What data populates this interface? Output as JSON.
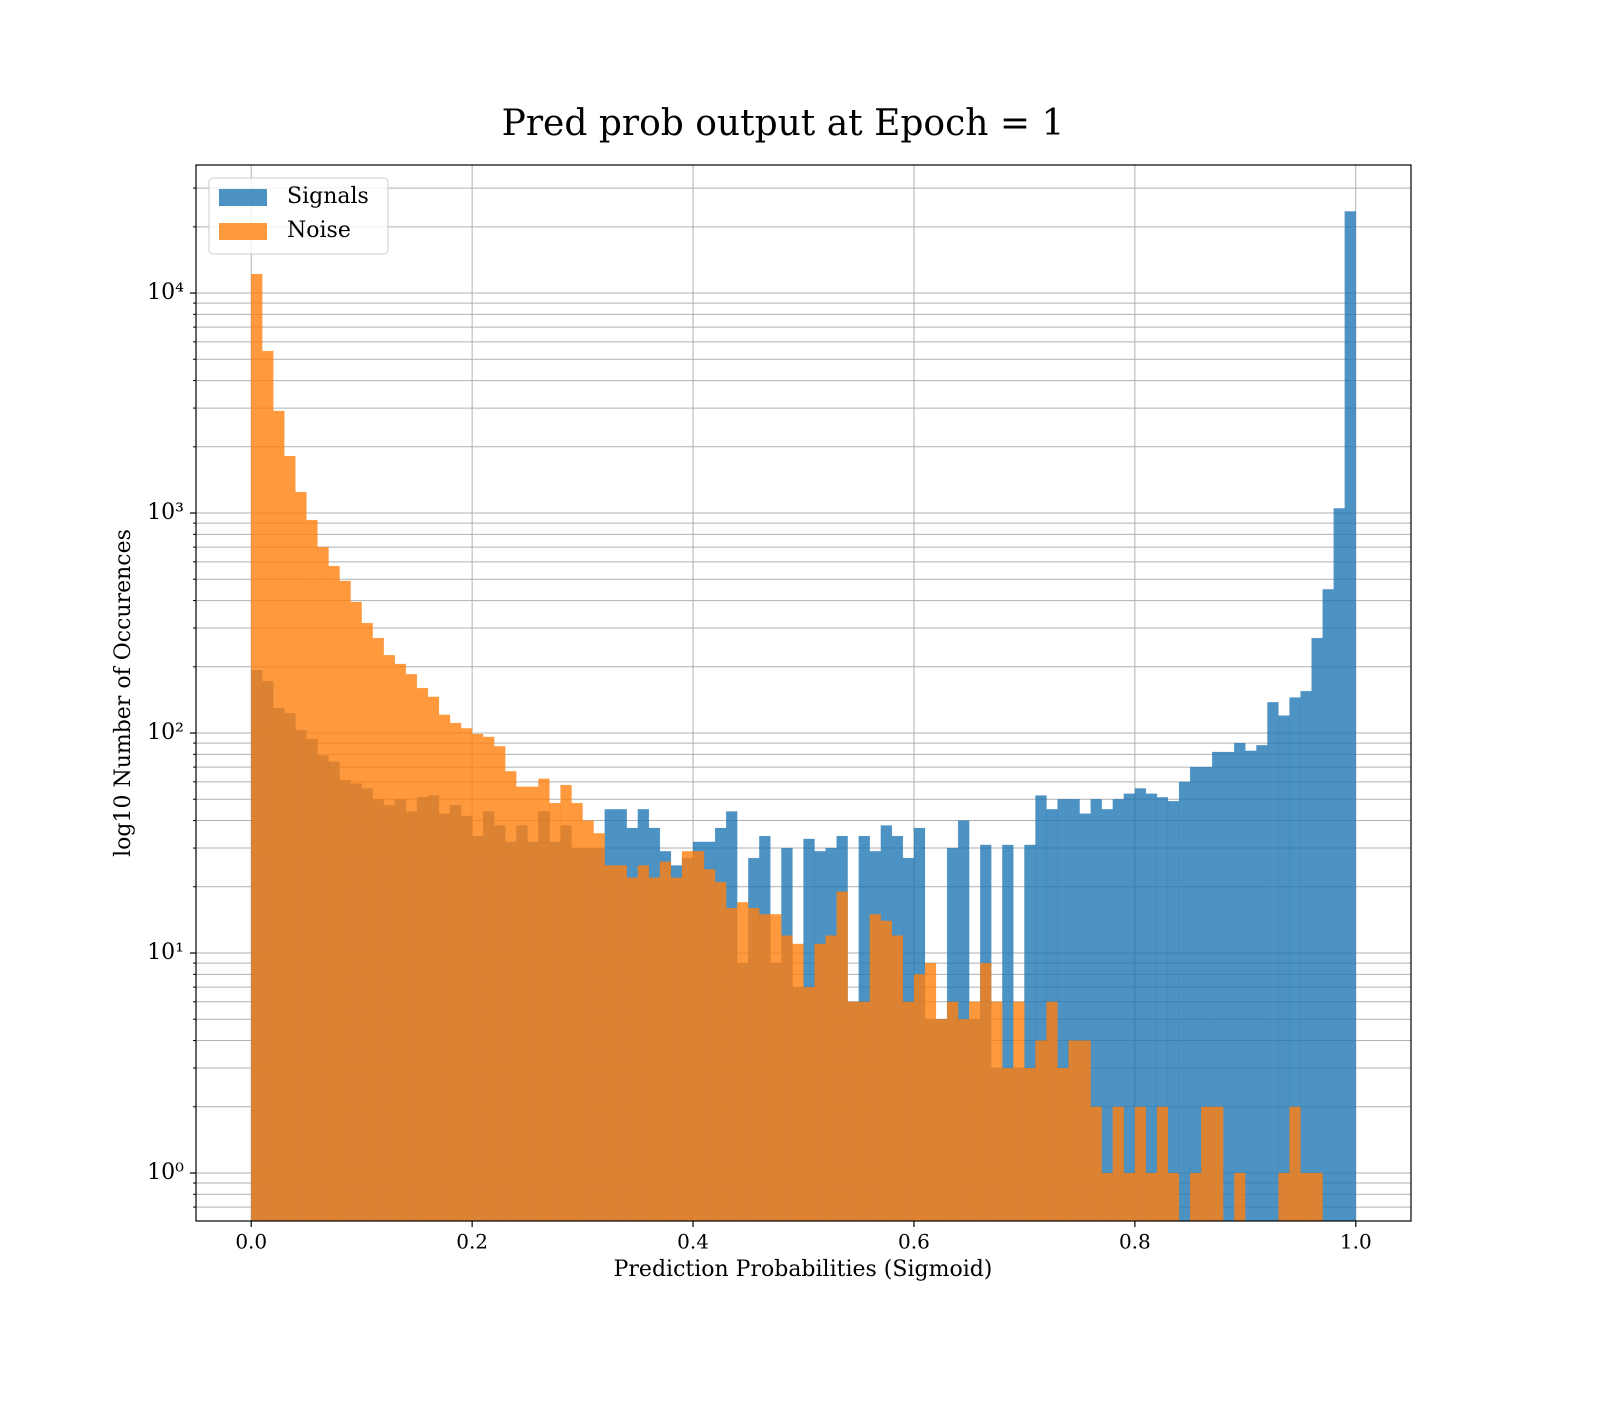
{
  "chart_data": {
    "type": "histogram",
    "title": "Pred prob output at Epoch = 1",
    "x_label": "Prediction Probabilities (Sigmoid)",
    "y_label": "log10 Number of Occurences",
    "log_y": true,
    "grid": true,
    "legend": "upper left",
    "opacity": 0.8,
    "xlim": [
      -0.05,
      1.05
    ],
    "ylim": [
      0.605,
      38200
    ],
    "xticks": [
      {
        "value": 0,
        "label": "0.0"
      },
      0.2,
      0.4,
      0.6,
      0.8,
      {
        "value": 1,
        "label": "1.0"
      }
    ],
    "yticks": [
      {
        "value": 1,
        "label": "10⁰"
      },
      {
        "value": 10,
        "label": "10¹"
      },
      {
        "value": 100,
        "label": "10²"
      },
      {
        "value": 1000,
        "label": "10³"
      },
      {
        "value": 10000,
        "label": "10⁴"
      }
    ],
    "yminorticks": [
      0.7,
      0.8,
      0.9,
      2,
      3,
      4,
      5,
      6,
      7,
      8,
      9,
      20,
      30,
      40,
      50,
      60,
      70,
      80,
      90,
      200,
      300,
      400,
      500,
      600,
      700,
      800,
      900,
      2000,
      3000,
      4000,
      5000,
      6000,
      7000,
      8000,
      9000,
      20000,
      30000
    ],
    "bins": [
      0,
      0.01,
      0.02,
      0.03,
      0.04,
      0.05,
      0.06,
      0.07,
      0.08,
      0.09,
      0.1,
      0.11,
      0.12,
      0.13,
      0.14,
      0.15,
      0.16,
      0.17,
      0.18,
      0.19,
      0.2,
      0.21,
      0.22,
      0.23,
      0.24,
      0.25,
      0.26,
      0.27,
      0.28,
      0.29,
      0.3,
      0.31,
      0.32,
      0.33,
      0.34,
      0.35,
      0.36,
      0.37,
      0.38,
      0.39,
      0.4,
      0.41,
      0.42,
      0.43,
      0.44,
      0.45,
      0.46,
      0.47,
      0.48,
      0.49,
      0.5,
      0.51,
      0.52,
      0.53,
      0.54,
      0.55,
      0.56,
      0.57,
      0.58,
      0.59,
      0.6,
      0.61,
      0.62,
      0.63,
      0.64,
      0.65,
      0.66,
      0.67,
      0.68,
      0.69,
      0.7,
      0.71,
      0.72,
      0.73,
      0.74,
      0.75,
      0.76,
      0.77,
      0.78,
      0.79,
      0.8,
      0.81,
      0.82,
      0.83,
      0.84,
      0.85,
      0.86,
      0.87,
      0.88,
      0.89,
      0.9,
      0.91,
      0.92,
      0.93,
      0.94,
      0.95,
      0.96,
      0.97,
      0.98,
      0.99,
      1
    ],
    "series": [
      {
        "name": "Signals",
        "color": "#1f77b4",
        "values": [
          193,
          172,
          130,
          123,
          103,
          94,
          79,
          74,
          61,
          59,
          56,
          50,
          47,
          50,
          44,
          51,
          52,
          43,
          47,
          42,
          34,
          44,
          38,
          32,
          38,
          32,
          44,
          32,
          38,
          30,
          30,
          30,
          45,
          45,
          37,
          45,
          37,
          29,
          25,
          27,
          32,
          32,
          37,
          44,
          9,
          27,
          34,
          9,
          30,
          7,
          33,
          29,
          30,
          34,
          6,
          34,
          29,
          38,
          34,
          27,
          37,
          5,
          5,
          30,
          40,
          5,
          31,
          3,
          31,
          3,
          31,
          52,
          45,
          50,
          50,
          43,
          50,
          45,
          50,
          53,
          56,
          53,
          51,
          49,
          60,
          70,
          70,
          82,
          82,
          90,
          83,
          88,
          138,
          120,
          145,
          155,
          270,
          450,
          1050,
          23500
        ]
      },
      {
        "name": "Noise",
        "color": "#ff7f0e",
        "values": [
          12200,
          5450,
          2910,
          1815,
          1245,
          929,
          700,
          574,
          491,
          394,
          316,
          270,
          226,
          206,
          185,
          160,
          146,
          121,
          111,
          105,
          99,
          96,
          87,
          67,
          57,
          57,
          62,
          48,
          58,
          48,
          40,
          35,
          25,
          25,
          22,
          25,
          22,
          26,
          22,
          29,
          29,
          24,
          21,
          16,
          17,
          16,
          15,
          15,
          12,
          11,
          7,
          11,
          12,
          19,
          6,
          6,
          15,
          14,
          12,
          6,
          8,
          9,
          5,
          6,
          5,
          6,
          9,
          6,
          3,
          6,
          3,
          4,
          6,
          3,
          4,
          4,
          2,
          1,
          2,
          1,
          2,
          1,
          2,
          1,
          0,
          1,
          2,
          2,
          0,
          1,
          0,
          0,
          0,
          1,
          2,
          1,
          1,
          0,
          0,
          0
        ]
      }
    ]
  }
}
